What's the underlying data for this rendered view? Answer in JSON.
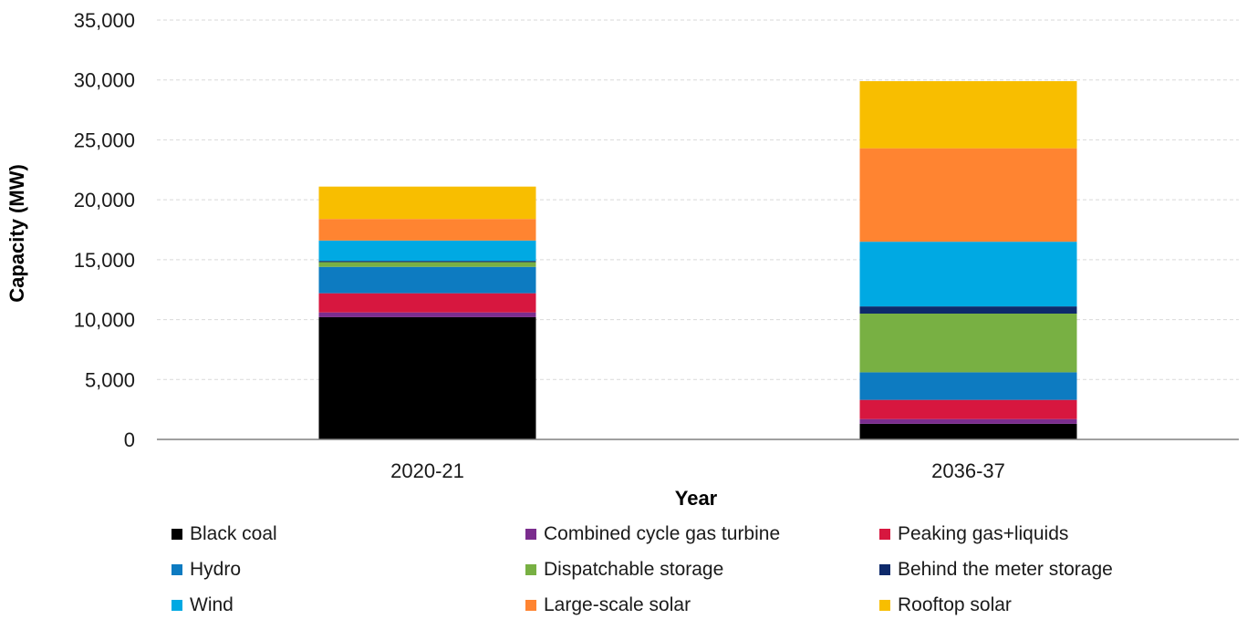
{
  "chart_data": {
    "type": "bar",
    "stacked": true,
    "categories": [
      "2020-21",
      "2036-37"
    ],
    "xlabel": "Year",
    "ylabel": "Capacity (MW)",
    "ylim": [
      0,
      35000
    ],
    "yticks": [
      0,
      5000,
      10000,
      15000,
      20000,
      25000,
      30000,
      35000
    ],
    "ytick_labels": [
      "0",
      "5,000",
      "10,000",
      "15,000",
      "20,000",
      "25,000",
      "30,000",
      "35,000"
    ],
    "grid": true,
    "legend_position": "bottom",
    "series": [
      {
        "name": "Black coal",
        "color": "#000000",
        "values": [
          10200,
          1300
        ]
      },
      {
        "name": "Combined cycle gas turbine",
        "color": "#7b2d8e",
        "values": [
          400,
          400
        ]
      },
      {
        "name": "Peaking gas+liquids",
        "color": "#d7173f",
        "values": [
          1600,
          1600
        ]
      },
      {
        "name": "Hydro",
        "color": "#0d7bc1",
        "values": [
          2200,
          2300
        ]
      },
      {
        "name": "Dispatchable storage",
        "color": "#78b043",
        "values": [
          400,
          4900
        ]
      },
      {
        "name": "Behind the meter storage",
        "color": "#0e2a6b",
        "values": [
          100,
          600
        ]
      },
      {
        "name": "Wind",
        "color": "#00a9e3",
        "values": [
          1700,
          5400
        ]
      },
      {
        "name": "Large-scale solar",
        "color": "#ff8431",
        "values": [
          1800,
          7800
        ]
      },
      {
        "name": "Rooftop solar",
        "color": "#f8be00",
        "values": [
          2700,
          5600
        ]
      }
    ]
  }
}
